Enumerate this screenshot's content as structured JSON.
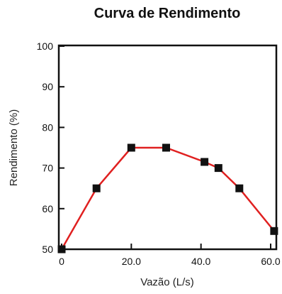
{
  "chart_data": {
    "type": "line",
    "title": "Curva de Rendimento",
    "xlabel": "Vazão (L/s)",
    "ylabel": "Rendimento (%)",
    "xlim": [
      0,
      60
    ],
    "ylim": [
      50,
      100
    ],
    "x_ticks": [
      {
        "value": 0,
        "label": "0"
      },
      {
        "value": 20,
        "label": "20.0"
      },
      {
        "value": 40,
        "label": "40.0"
      },
      {
        "value": 60,
        "label": "60.0"
      }
    ],
    "y_ticks": [
      {
        "value": 50,
        "label": "50"
      },
      {
        "value": 60,
        "label": "60"
      },
      {
        "value": 70,
        "label": "70"
      },
      {
        "value": 80,
        "label": "80"
      },
      {
        "value": 90,
        "label": "90"
      },
      {
        "value": 100,
        "label": "100"
      }
    ],
    "grid": false,
    "series": [
      {
        "x": [
          0,
          10,
          20,
          30,
          41,
          45,
          51,
          61
        ],
        "values": [
          50,
          65,
          75,
          75,
          71.5,
          70,
          65,
          54.5
        ],
        "line_color": "#e02020",
        "marker": "square",
        "marker_color": "#111111"
      }
    ]
  }
}
